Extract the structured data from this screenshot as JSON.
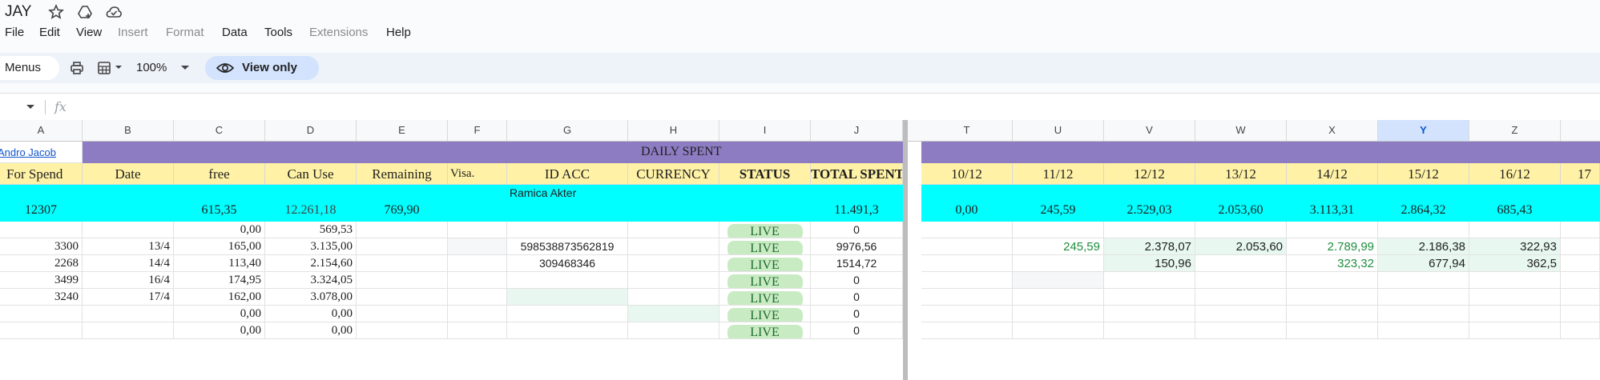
{
  "title": {
    "doc_name": "JAY"
  },
  "menu": [
    "File",
    "Edit",
    "View",
    "Insert",
    "Format",
    "Data",
    "Tools",
    "Extensions",
    "Help"
  ],
  "menu_disabled": [
    "Insert",
    "Format",
    "Extensions"
  ],
  "toolbar": {
    "menus_label": "Menus",
    "zoom": "100%",
    "view_only_label": "View only"
  },
  "formula_bar": {
    "fx_label": "fx"
  },
  "columns": [
    "A",
    "B",
    "C",
    "D",
    "E",
    "F",
    "G",
    "H",
    "I",
    "J",
    "T",
    "U",
    "V",
    "W",
    "X",
    "Y",
    "Z"
  ],
  "selected_column": "Y",
  "row_purple": {
    "a_link": "Andro Jacob",
    "title": "DAILY SPENT"
  },
  "row_header": {
    "a": "For Spend",
    "b": "Date",
    "c": "free",
    "d": "Can Use",
    "e": "Remaining",
    "f": "Visa.",
    "g": "ID ACC",
    "h": "CURRENCY",
    "i": "STATUS",
    "j": "TOTAL SPENT",
    "dates": [
      "10/12",
      "11/12",
      "12/12",
      "13/12",
      "14/12",
      "15/12",
      "16/12",
      "17"
    ]
  },
  "row_totals": {
    "a": "12307",
    "c": "615,35",
    "d": "12.261,18",
    "e": "769,90",
    "g": "Ramica Akter",
    "j": "11.491,3",
    "dates": [
      "0,00",
      "245,59",
      "2.529,03",
      "2.053,60",
      "3.113,31",
      "2.864,32",
      "685,43"
    ]
  },
  "rows": [
    {
      "a": "",
      "b": "",
      "c": "0,00",
      "d": "569,53",
      "g": "",
      "i": "LIVE",
      "j": "0",
      "days": [
        "",
        "",
        "",
        "",
        "",
        "",
        ""
      ]
    },
    {
      "a": "3300",
      "b": "13/4",
      "c": "165,00",
      "d": "3.135,00",
      "g": "598538873562819",
      "i": "LIVE",
      "j": "9976,56",
      "days": [
        "",
        "245,59",
        "2.378,07",
        "2.053,60",
        "2.789,99",
        "2.186,38",
        "322,93"
      ]
    },
    {
      "a": "2268",
      "b": "14/4",
      "c": "113,40",
      "d": "2.154,60",
      "g": "309468346",
      "i": "LIVE",
      "j": "1514,72",
      "days": [
        "",
        "",
        "150,96",
        "",
        "323,32",
        "677,94",
        "362,5"
      ]
    },
    {
      "a": "3499",
      "b": "16/4",
      "c": "174,95",
      "d": "3.324,05",
      "g": "",
      "i": "LIVE",
      "j": "0",
      "days": [
        "",
        "",
        "",
        "",
        "",
        "",
        ""
      ]
    },
    {
      "a": "3240",
      "b": "17/4",
      "c": "162,00",
      "d": "3.078,00",
      "g": "",
      "i": "LIVE",
      "j": "0",
      "days": [
        "",
        "",
        "",
        "",
        "",
        "",
        ""
      ]
    },
    {
      "a": "",
      "b": "",
      "c": "0,00",
      "d": "0,00",
      "g": "",
      "i": "LIVE",
      "j": "0",
      "days": [
        "",
        "",
        "",
        "",
        "",
        "",
        ""
      ]
    },
    {
      "a": "",
      "b": "",
      "c": "0,00",
      "d": "0,00",
      "g": "",
      "i": "LIVE",
      "j": "0",
      "days": [
        "",
        "",
        "",
        "",
        "",
        "",
        ""
      ]
    }
  ]
}
